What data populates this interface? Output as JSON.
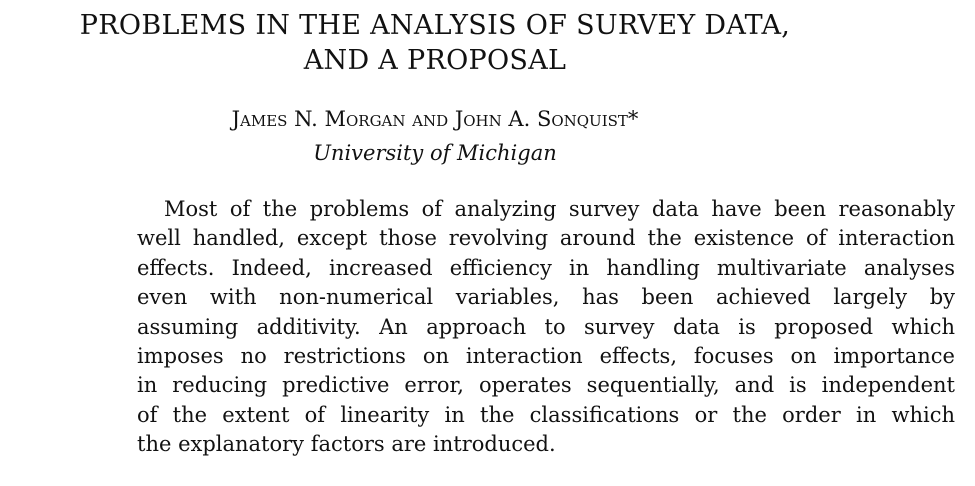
{
  "header": {
    "title_line_1": "PROBLEMS IN THE ANALYSIS OF SURVEY DATA,",
    "title_line_2": "AND A PROPOSAL",
    "authors": "James N. Morgan and John A. Sonquist*",
    "affiliation": "University of Michigan"
  },
  "abstract": {
    "lines": [
      "Most of the problems of analyzing survey data have been reasonably",
      "well handled, except those revolving around the existence of interaction",
      "effects. Indeed, increased efficiency in handling multivariate analyses",
      "even with non-numerical variables, has been achieved largely by",
      "assuming additivity. An approach to survey data is proposed which",
      "imposes no restrictions on interaction effects, focuses on importance",
      "in reducing predictive error, operates sequentially, and is independent",
      "of the extent of linearity in the classifications or the order in which",
      "the explanatory factors are introduced."
    ]
  }
}
